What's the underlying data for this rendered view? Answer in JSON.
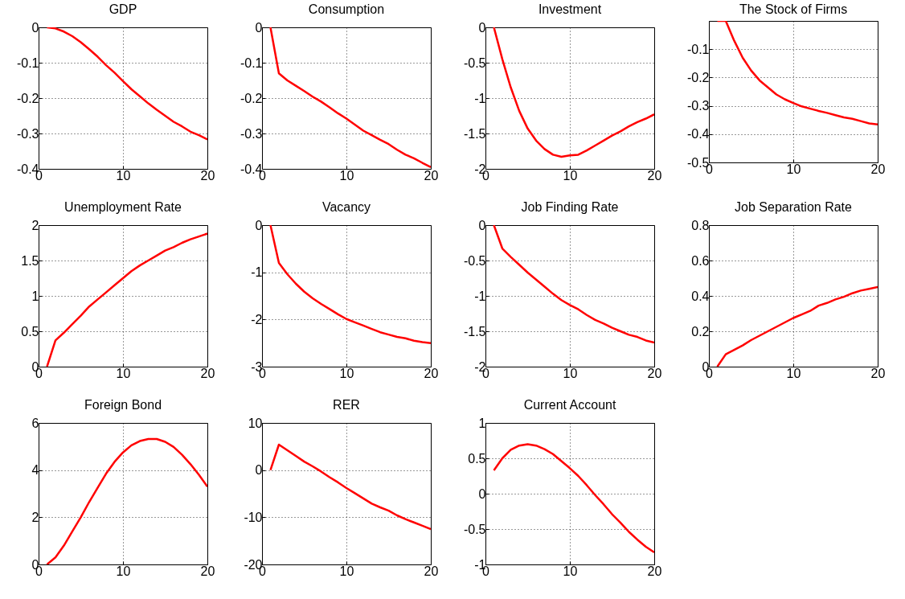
{
  "chart_data": [
    {
      "type": "line",
      "title": "GDP",
      "x": [
        1,
        2,
        3,
        4,
        5,
        6,
        7,
        8,
        9,
        10,
        11,
        12,
        13,
        14,
        15,
        16,
        17,
        18,
        19,
        20
      ],
      "values": [
        0,
        -0.003,
        -0.012,
        -0.025,
        -0.042,
        -0.062,
        -0.083,
        -0.107,
        -0.128,
        -0.152,
        -0.175,
        -0.195,
        -0.215,
        -0.233,
        -0.25,
        -0.267,
        -0.28,
        -0.295,
        -0.305,
        -0.317
      ],
      "color": "#ff0000",
      "xlim": [
        0,
        20
      ],
      "xticks": [
        0,
        10,
        20
      ],
      "ylim": [
        -0.4,
        0
      ],
      "yticks": [
        -0.4,
        -0.3,
        -0.2,
        -0.1,
        0
      ],
      "grid": true
    },
    {
      "type": "line",
      "title": "Consumption",
      "x": [
        1,
        2,
        3,
        4,
        5,
        6,
        7,
        8,
        9,
        10,
        11,
        12,
        13,
        14,
        15,
        16,
        17,
        18,
        19,
        20
      ],
      "values": [
        0,
        -0.13,
        -0.15,
        -0.165,
        -0.18,
        -0.196,
        -0.21,
        -0.226,
        -0.243,
        -0.258,
        -0.275,
        -0.292,
        -0.305,
        -0.318,
        -0.33,
        -0.346,
        -0.36,
        -0.37,
        -0.383,
        -0.395
      ],
      "color": "#ff0000",
      "xlim": [
        0,
        20
      ],
      "xticks": [
        0,
        10,
        20
      ],
      "ylim": [
        -0.4,
        0
      ],
      "yticks": [
        -0.4,
        -0.3,
        -0.2,
        -0.1,
        0
      ],
      "grid": true
    },
    {
      "type": "line",
      "title": "Investment",
      "x": [
        1,
        2,
        3,
        4,
        5,
        6,
        7,
        8,
        9,
        10,
        11,
        12,
        13,
        14,
        15,
        16,
        17,
        18,
        19,
        20
      ],
      "values": [
        0,
        -0.45,
        -0.85,
        -1.18,
        -1.43,
        -1.6,
        -1.72,
        -1.8,
        -1.83,
        -1.81,
        -1.8,
        -1.74,
        -1.67,
        -1.6,
        -1.53,
        -1.47,
        -1.4,
        -1.34,
        -1.29,
        -1.23
      ],
      "color": "#ff0000",
      "xlim": [
        0,
        20
      ],
      "xticks": [
        0,
        10,
        20
      ],
      "ylim": [
        -2,
        0
      ],
      "yticks": [
        -2,
        -1.5,
        -1,
        -0.5,
        0
      ],
      "grid": true
    },
    {
      "type": "line",
      "title": "The Stock of Firms",
      "x": [
        1,
        2,
        3,
        4,
        5,
        6,
        7,
        8,
        9,
        10,
        11,
        12,
        13,
        14,
        15,
        16,
        17,
        18,
        19,
        20
      ],
      "values": [
        0,
        0,
        -0.07,
        -0.13,
        -0.175,
        -0.21,
        -0.235,
        -0.26,
        -0.277,
        -0.29,
        -0.302,
        -0.31,
        -0.318,
        -0.325,
        -0.333,
        -0.341,
        -0.346,
        -0.354,
        -0.362,
        -0.366
      ],
      "color": "#ff0000",
      "xlim": [
        0,
        20
      ],
      "xticks": [
        0,
        10,
        20
      ],
      "ylim": [
        -0.5,
        0
      ],
      "yticks": [
        -0.5,
        -0.4,
        -0.3,
        -0.2,
        -0.1
      ],
      "grid": true
    },
    {
      "type": "line",
      "title": "Unemployment Rate",
      "x": [
        1,
        2,
        3,
        4,
        5,
        6,
        7,
        8,
        9,
        10,
        11,
        12,
        13,
        14,
        15,
        16,
        17,
        18,
        19,
        20
      ],
      "values": [
        0,
        0.37,
        0.48,
        0.6,
        0.72,
        0.85,
        0.95,
        1.05,
        1.15,
        1.25,
        1.35,
        1.43,
        1.5,
        1.57,
        1.64,
        1.69,
        1.75,
        1.8,
        1.84,
        1.88
      ],
      "color": "#ff0000",
      "xlim": [
        0,
        20
      ],
      "xticks": [
        0,
        10,
        20
      ],
      "ylim": [
        0,
        2
      ],
      "yticks": [
        0,
        0.5,
        1,
        1.5,
        2
      ],
      "grid": true
    },
    {
      "type": "line",
      "title": "Vacancy",
      "x": [
        1,
        2,
        3,
        4,
        5,
        6,
        7,
        8,
        9,
        10,
        11,
        12,
        13,
        14,
        15,
        16,
        17,
        18,
        19,
        20
      ],
      "values": [
        0,
        -0.8,
        -1.04,
        -1.24,
        -1.41,
        -1.55,
        -1.67,
        -1.78,
        -1.89,
        -1.99,
        -2.06,
        -2.13,
        -2.2,
        -2.27,
        -2.32,
        -2.37,
        -2.4,
        -2.45,
        -2.48,
        -2.5
      ],
      "color": "#ff0000",
      "xlim": [
        0,
        20
      ],
      "xticks": [
        0,
        10,
        20
      ],
      "ylim": [
        -3,
        0
      ],
      "yticks": [
        -3,
        -2,
        -1,
        0
      ],
      "grid": true
    },
    {
      "type": "line",
      "title": "Job Finding Rate",
      "x": [
        1,
        2,
        3,
        4,
        5,
        6,
        7,
        8,
        9,
        10,
        11,
        12,
        13,
        14,
        15,
        16,
        17,
        18,
        19,
        20
      ],
      "values": [
        0,
        -0.33,
        -0.45,
        -0.56,
        -0.67,
        -0.77,
        -0.87,
        -0.97,
        -1.06,
        -1.13,
        -1.19,
        -1.27,
        -1.34,
        -1.39,
        -1.45,
        -1.5,
        -1.55,
        -1.58,
        -1.63,
        -1.66
      ],
      "color": "#ff0000",
      "xlim": [
        0,
        20
      ],
      "xticks": [
        0,
        10,
        20
      ],
      "ylim": [
        -2,
        0
      ],
      "yticks": [
        -2,
        -1.5,
        -1,
        -0.5,
        0
      ],
      "grid": true
    },
    {
      "type": "line",
      "title": "Job Separation Rate",
      "x": [
        1,
        2,
        3,
        4,
        5,
        6,
        7,
        8,
        9,
        10,
        11,
        12,
        13,
        14,
        15,
        16,
        17,
        18,
        19,
        20
      ],
      "values": [
        0,
        0.07,
        0.095,
        0.12,
        0.15,
        0.175,
        0.2,
        0.225,
        0.25,
        0.275,
        0.295,
        0.315,
        0.345,
        0.36,
        0.38,
        0.395,
        0.415,
        0.43,
        0.44,
        0.45
      ],
      "color": "#ff0000",
      "xlim": [
        0,
        20
      ],
      "xticks": [
        0,
        10,
        20
      ],
      "ylim": [
        0,
        0.8
      ],
      "yticks": [
        0,
        0.2,
        0.4,
        0.6,
        0.8
      ],
      "grid": true
    },
    {
      "type": "line",
      "title": "Foreign Bond",
      "x": [
        1,
        2,
        3,
        4,
        5,
        6,
        7,
        8,
        9,
        10,
        11,
        12,
        13,
        14,
        15,
        16,
        17,
        18,
        19,
        20
      ],
      "values": [
        0,
        0.3,
        0.8,
        1.4,
        2.0,
        2.65,
        3.25,
        3.85,
        4.35,
        4.75,
        5.05,
        5.23,
        5.32,
        5.32,
        5.2,
        4.98,
        4.65,
        4.25,
        3.8,
        3.3
      ],
      "color": "#ff0000",
      "xlim": [
        0,
        20
      ],
      "xticks": [
        0,
        10,
        20
      ],
      "ylim": [
        0,
        6
      ],
      "yticks": [
        0,
        2,
        4,
        6
      ],
      "grid": true
    },
    {
      "type": "line",
      "title": "RER",
      "x": [
        1,
        2,
        3,
        4,
        5,
        6,
        7,
        8,
        9,
        10,
        11,
        12,
        13,
        14,
        15,
        16,
        17,
        18,
        19,
        20
      ],
      "values": [
        0,
        5.4,
        4.2,
        3.0,
        1.8,
        0.8,
        -0.3,
        -1.5,
        -2.6,
        -3.8,
        -4.9,
        -6.0,
        -7.1,
        -7.9,
        -8.6,
        -9.6,
        -10.4,
        -11.1,
        -11.8,
        -12.5
      ],
      "color": "#ff0000",
      "xlim": [
        0,
        20
      ],
      "xticks": [
        0,
        10,
        20
      ],
      "ylim": [
        -20,
        10
      ],
      "yticks": [
        -20,
        -10,
        0,
        10
      ],
      "grid": true
    },
    {
      "type": "line",
      "title": "Current Account",
      "x": [
        1,
        2,
        3,
        4,
        5,
        6,
        7,
        8,
        9,
        10,
        11,
        12,
        13,
        14,
        15,
        16,
        17,
        18,
        19,
        20
      ],
      "values": [
        0.33,
        0.5,
        0.62,
        0.68,
        0.7,
        0.68,
        0.63,
        0.56,
        0.46,
        0.36,
        0.25,
        0.12,
        -0.02,
        -0.15,
        -0.29,
        -0.41,
        -0.54,
        -0.65,
        -0.75,
        -0.83
      ],
      "color": "#ff0000",
      "xlim": [
        0,
        20
      ],
      "xticks": [
        0,
        10,
        20
      ],
      "ylim": [
        -1,
        1
      ],
      "yticks": [
        -1,
        -0.5,
        0,
        0.5,
        1
      ],
      "grid": true
    }
  ]
}
